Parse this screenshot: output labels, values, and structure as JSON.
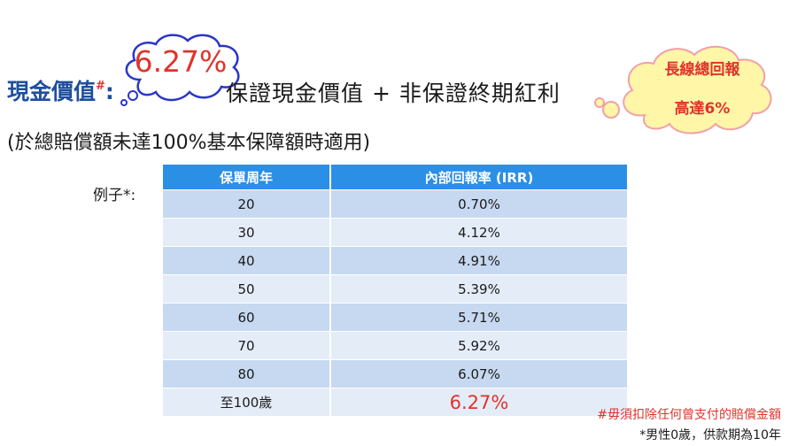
{
  "heading": {
    "title": "現金價值",
    "title_mark": "#",
    "colon": ":",
    "formula": "保證現金價值 + 非保證終期紅利"
  },
  "cloud_left": {
    "value": "6.27%"
  },
  "subtitle": "(於總賠償額未達100%基本保障額時適用)",
  "cloud_right": {
    "line1": "長線總回報",
    "line2": "高達6%"
  },
  "example_label": "例子*:",
  "table": {
    "headers": [
      "保單周年",
      "內部回報率 (IRR)"
    ],
    "rows": [
      [
        "20",
        "0.70%"
      ],
      [
        "30",
        "4.12%"
      ],
      [
        "40",
        "4.91%"
      ],
      [
        "50",
        "5.39%"
      ],
      [
        "60",
        "5.71%"
      ],
      [
        "70",
        "5.92%"
      ],
      [
        "80",
        "6.07%"
      ],
      [
        "至100歲",
        "6.27%"
      ]
    ]
  },
  "footnotes": {
    "note1": "#毋須扣除任何曾支付的賠償金額",
    "note2": "*男性0歲，供款期為10年"
  },
  "colors": {
    "accent_blue": "#1f4e9e",
    "header_blue": "#2b8fe6",
    "highlight_red": "#e0332b",
    "cloud_fill": "#fff6a8",
    "cloud_outline_left": "#2a36c8",
    "cloud_outline_right": "#f2a0a8"
  }
}
